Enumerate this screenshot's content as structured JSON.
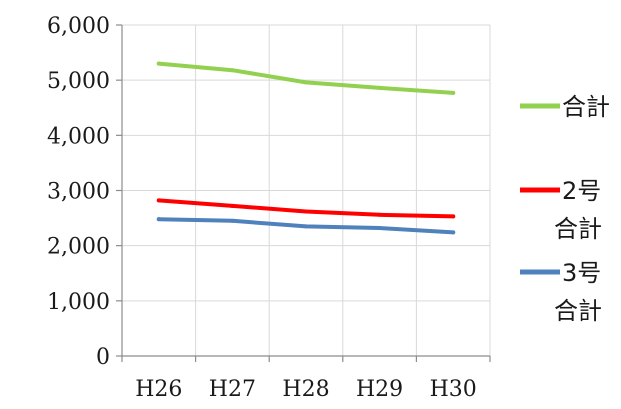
{
  "chart_data": {
    "type": "line",
    "categories": [
      "H26",
      "H27",
      "H28",
      "H29",
      "H30"
    ],
    "yticks": [
      "0",
      "1,000",
      "2,000",
      "3,000",
      "4,000",
      "5,000",
      "6,000"
    ],
    "ylim": [
      0,
      6000
    ],
    "grid": true,
    "legend_position": "right",
    "series": [
      {
        "name": "合計",
        "name_lines": [
          "合計"
        ],
        "color": "#92d050",
        "values": [
          5300,
          5180,
          4960,
          4860,
          4770
        ]
      },
      {
        "name": "2号合計",
        "name_lines": [
          "2号",
          "合計"
        ],
        "color": "#ff0000",
        "values": [
          2820,
          2720,
          2620,
          2560,
          2530
        ]
      },
      {
        "name": "3号合計",
        "name_lines": [
          "3号",
          "合計"
        ],
        "color": "#4f81bd",
        "values": [
          2480,
          2450,
          2350,
          2320,
          2240
        ]
      }
    ]
  }
}
